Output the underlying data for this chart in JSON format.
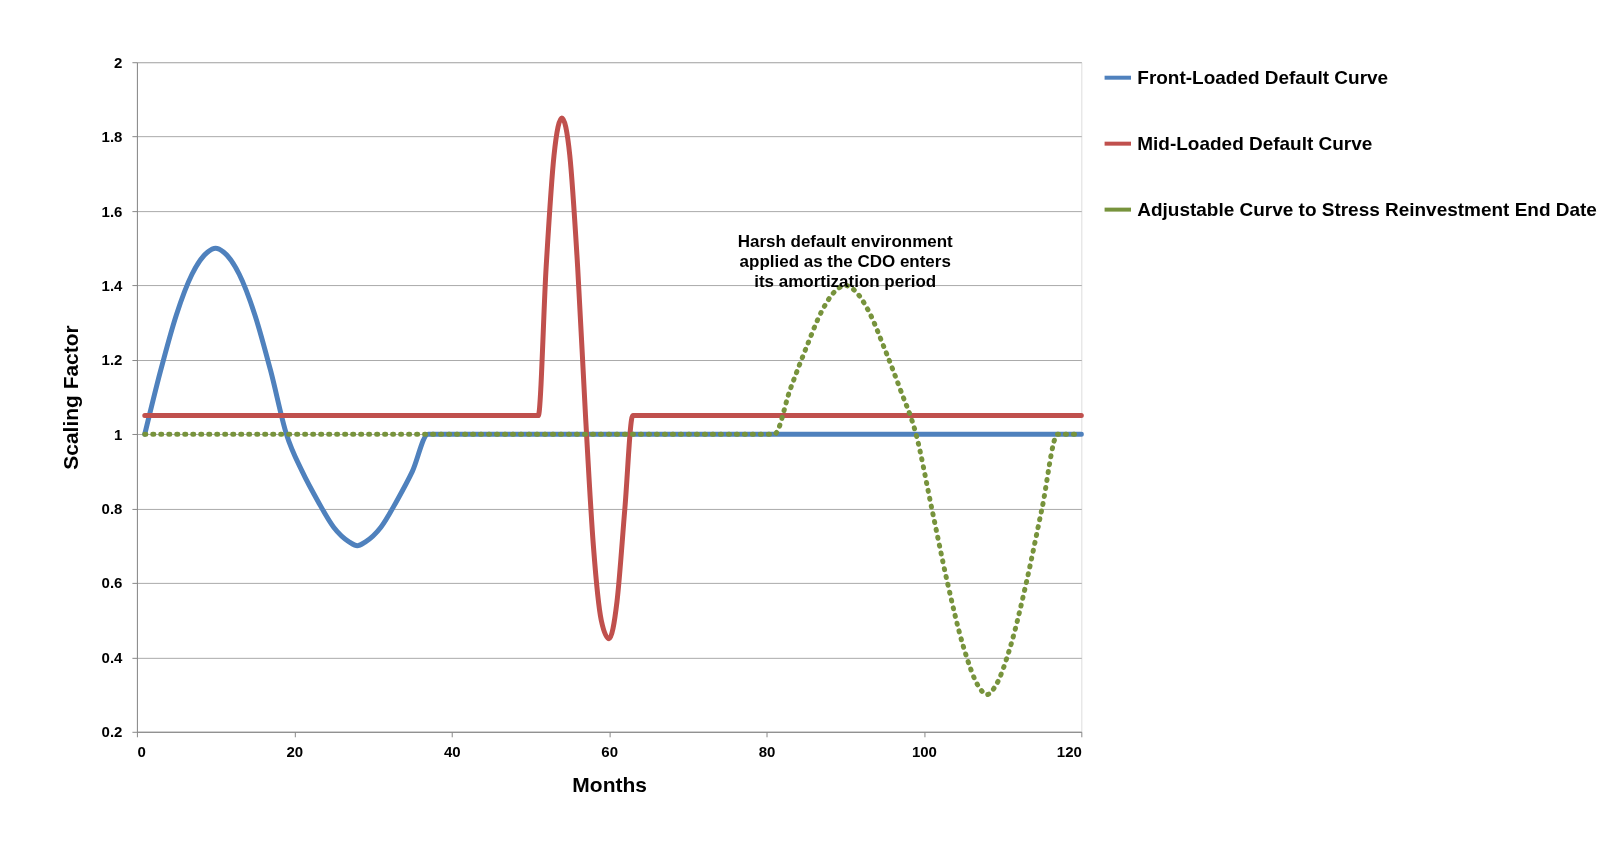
{
  "chart_data": {
    "type": "line",
    "xlabel": "Months",
    "ylabel": "Scaling Factor",
    "xlim": [
      0,
      120
    ],
    "xticks": [
      0,
      20,
      40,
      60,
      80,
      100,
      120
    ],
    "ylim": [
      0.2,
      2
    ],
    "yticks": [
      0.2,
      0.4,
      0.6,
      0.8,
      1,
      1.2,
      1.4,
      1.6,
      1.8,
      2
    ],
    "grid": "y",
    "legend": "right",
    "marker": "none",
    "series": [
      {
        "name": "Front-Loaded Default Curve",
        "color": "#4f81bd",
        "line_style": "solid",
        "x": [
          1,
          3,
          5,
          7,
          9,
          10,
          11,
          13,
          15,
          17,
          19,
          21,
          23,
          25,
          27,
          28,
          29,
          31,
          33,
          35,
          37,
          120
        ],
        "values": [
          1,
          1.17,
          1.32,
          1.43,
          1.49,
          1.5,
          1.49,
          1.43,
          1.32,
          1.17,
          1.0,
          0.9,
          0.82,
          0.75,
          0.71,
          0.7,
          0.71,
          0.75,
          0.82,
          0.9,
          1.0,
          1.0
        ]
      },
      {
        "name": "Mid-Loaded Default Curve",
        "color": "#c0504d",
        "line_style": "solid",
        "x": [
          1,
          51,
          52,
          53,
          54,
          55,
          56,
          57,
          58,
          59,
          60,
          61,
          62,
          63,
          120
        ],
        "values": [
          1.05,
          1.05,
          1.45,
          1.75,
          1.85,
          1.75,
          1.45,
          1.05,
          0.7,
          0.5,
          0.45,
          0.55,
          0.8,
          1.05,
          1.05
        ]
      },
      {
        "name": "Adjustable Curve to Stress Reinvestment End Date",
        "color": "#77933c",
        "line_style": "dotted",
        "x": [
          1,
          81,
          83,
          85,
          87,
          89,
          90,
          91,
          93,
          95,
          97,
          99,
          101,
          103,
          105,
          107,
          108,
          109,
          111,
          113,
          115,
          117,
          120
        ],
        "values": [
          1,
          1,
          1.12,
          1.23,
          1.33,
          1.39,
          1.4,
          1.39,
          1.33,
          1.23,
          1.12,
          1.0,
          0.8,
          0.6,
          0.43,
          0.32,
          0.3,
          0.32,
          0.43,
          0.6,
          0.8,
          1.0,
          1.0
        ]
      }
    ],
    "annotations": [
      {
        "text": "Harsh default environment\napplied as the CDO enters\nits amortization period",
        "x": 90,
        "y": 1.4
      }
    ]
  }
}
